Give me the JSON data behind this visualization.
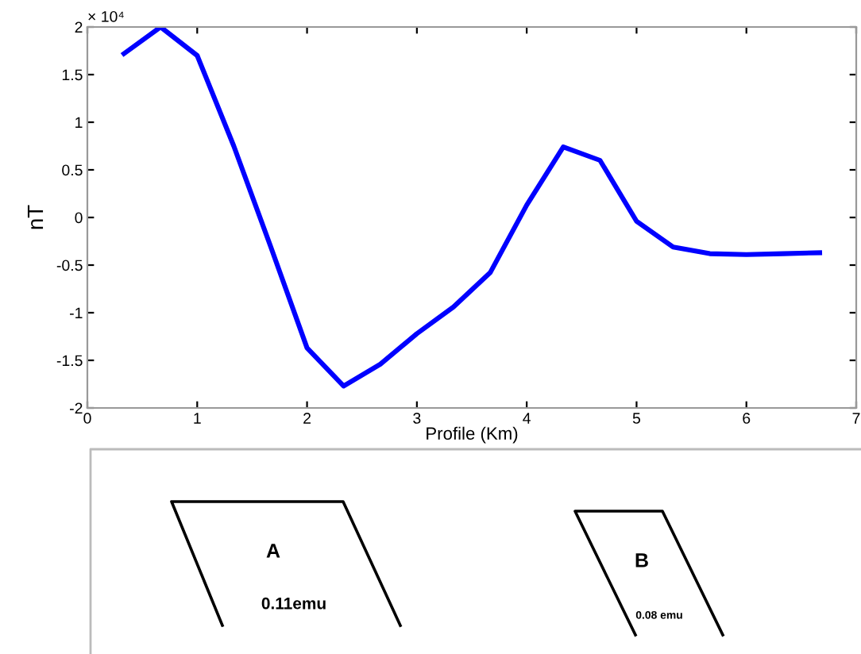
{
  "chart_data": {
    "type": "line",
    "xlabel": "Profile (Km)",
    "ylabel": "nT",
    "x": [
      0.333,
      0.667,
      1.0,
      1.333,
      1.667,
      2.0,
      2.333,
      2.667,
      3.0,
      3.333,
      3.667,
      4.0,
      4.333,
      4.667,
      5.0,
      5.333,
      5.667,
      6.0,
      6.333,
      6.667
    ],
    "series": [
      {
        "color": "#0000ff",
        "values": [
          1.72,
          2.0,
          1.7,
          0.75,
          -0.3,
          -1.37,
          -1.77,
          -1.54,
          -1.22,
          -0.94,
          -0.58,
          0.13,
          0.74,
          0.6,
          -0.04,
          -0.31,
          -0.38,
          -0.39,
          -0.38,
          -0.37
        ]
      }
    ],
    "xlim": [
      0,
      7
    ],
    "xticks": [
      0,
      1,
      2,
      3,
      4,
      5,
      6,
      7
    ],
    "ylim": [
      -2,
      2
    ],
    "yticks": [
      -2,
      -1.5,
      -1,
      -0.5,
      0,
      0.5,
      1,
      1.5,
      2
    ],
    "grid": false,
    "legend": false,
    "marker": "none",
    "line_style": "solid",
    "annotations": [
      "× 10⁴",
      "A",
      "0.11emu",
      "B",
      "0.08 emu"
    ]
  }
}
